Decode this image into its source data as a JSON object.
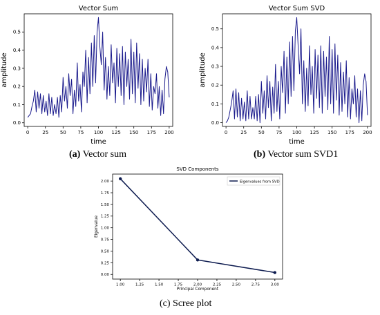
{
  "captions": {
    "a": {
      "tag": "(a)",
      "text": "Vector sum"
    },
    "b": {
      "tag": "(b)",
      "text": "Vector sum SVD1"
    },
    "c": {
      "tag": "(c)",
      "text": "Scree plot"
    }
  },
  "colors": {
    "line": "#1a1a8c",
    "scree": "#0d1b4f"
  },
  "chart_data": [
    {
      "type": "line",
      "title": "Vector Sum",
      "xlabel": "time",
      "ylabel": "amplitude",
      "xlim": [
        -5,
        205
      ],
      "ylim": [
        -0.02,
        0.6
      ],
      "xticks": [
        0,
        25,
        50,
        75,
        100,
        125,
        150,
        175,
        200
      ],
      "yticks": [
        0.0,
        0.1,
        0.2,
        0.3,
        0.4,
        0.5
      ],
      "ytick_labels": [
        "0.0",
        "0.1",
        "0.2",
        "0.3",
        "0.4",
        "0.5"
      ],
      "grid": false,
      "series": [
        {
          "x": [
            0,
            2,
            4,
            6,
            8,
            10,
            12,
            14,
            16,
            18,
            20,
            22,
            24,
            26,
            28,
            30,
            32,
            34,
            36,
            38,
            40,
            42,
            44,
            46,
            48,
            50,
            52,
            54,
            56,
            58,
            60,
            62,
            64,
            66,
            68,
            70,
            72,
            74,
            76,
            78,
            80,
            82,
            84,
            86,
            88,
            90,
            92,
            94,
            96,
            98,
            100,
            102,
            104,
            106,
            108,
            110,
            112,
            114,
            116,
            118,
            120,
            122,
            124,
            126,
            128,
            130,
            132,
            134,
            136,
            138,
            140,
            142,
            144,
            146,
            148,
            150,
            152,
            154,
            156,
            158,
            160,
            162,
            164,
            166,
            168,
            170,
            172,
            174,
            176,
            178,
            180,
            182,
            184,
            186,
            188,
            190,
            192,
            194,
            196,
            198,
            200
          ],
          "y": [
            0.03,
            0.04,
            0.05,
            0.09,
            0.12,
            0.18,
            0.06,
            0.17,
            0.08,
            0.16,
            0.05,
            0.15,
            0.06,
            0.12,
            0.04,
            0.16,
            0.05,
            0.14,
            0.04,
            0.1,
            0.05,
            0.14,
            0.03,
            0.15,
            0.06,
            0.25,
            0.12,
            0.2,
            0.08,
            0.27,
            0.15,
            0.24,
            0.05,
            0.18,
            0.09,
            0.33,
            0.12,
            0.21,
            0.06,
            0.28,
            0.2,
            0.4,
            0.11,
            0.36,
            0.16,
            0.44,
            0.2,
            0.48,
            0.22,
            0.5,
            0.58,
            0.42,
            0.32,
            0.5,
            0.18,
            0.36,
            0.13,
            0.31,
            0.15,
            0.43,
            0.22,
            0.33,
            0.11,
            0.41,
            0.2,
            0.38,
            0.15,
            0.42,
            0.1,
            0.39,
            0.2,
            0.35,
            0.13,
            0.46,
            0.16,
            0.39,
            0.11,
            0.44,
            0.19,
            0.38,
            0.1,
            0.35,
            0.12,
            0.3,
            0.17,
            0.35,
            0.09,
            0.27,
            0.07,
            0.2,
            0.16,
            0.27,
            0.08,
            0.2,
            0.04,
            0.18,
            0.05,
            0.24,
            0.31,
            0.28,
            0.14
          ]
        }
      ]
    },
    {
      "type": "line",
      "title": "Vector Sum SVD",
      "xlabel": "time",
      "ylabel": "amplitude",
      "xlim": [
        -5,
        205
      ],
      "ylim": [
        -0.02,
        0.58
      ],
      "xticks": [
        0,
        25,
        50,
        75,
        100,
        125,
        150,
        175,
        200
      ],
      "yticks": [
        0.0,
        0.1,
        0.2,
        0.3,
        0.4,
        0.5
      ],
      "ytick_labels": [
        "0.0",
        "0.1",
        "0.2",
        "0.3",
        "0.4",
        "0.5"
      ],
      "grid": false,
      "series": [
        {
          "x": [
            0,
            2,
            4,
            6,
            8,
            10,
            12,
            14,
            16,
            18,
            20,
            22,
            24,
            26,
            28,
            30,
            32,
            34,
            36,
            38,
            40,
            42,
            44,
            46,
            48,
            50,
            52,
            54,
            56,
            58,
            60,
            62,
            64,
            66,
            68,
            70,
            72,
            74,
            76,
            78,
            80,
            82,
            84,
            86,
            88,
            90,
            92,
            94,
            96,
            98,
            100,
            102,
            104,
            106,
            108,
            110,
            112,
            114,
            116,
            118,
            120,
            122,
            124,
            126,
            128,
            130,
            132,
            134,
            136,
            138,
            140,
            142,
            144,
            146,
            148,
            150,
            152,
            154,
            156,
            158,
            160,
            162,
            164,
            166,
            168,
            170,
            172,
            174,
            176,
            178,
            180,
            182,
            184,
            186,
            188,
            190,
            192,
            194,
            196,
            198,
            200
          ],
          "y": [
            0.0,
            0.01,
            0.03,
            0.07,
            0.11,
            0.17,
            0.02,
            0.18,
            0.03,
            0.16,
            0.01,
            0.13,
            0.02,
            0.11,
            0.01,
            0.17,
            0.02,
            0.14,
            0.02,
            0.08,
            0.02,
            0.14,
            0.01,
            0.15,
            0.0,
            0.22,
            0.05,
            0.17,
            0.02,
            0.25,
            0.08,
            0.22,
            0.01,
            0.19,
            0.05,
            0.31,
            0.06,
            0.22,
            0.02,
            0.3,
            0.16,
            0.38,
            0.05,
            0.35,
            0.1,
            0.43,
            0.14,
            0.46,
            0.17,
            0.49,
            0.56,
            0.41,
            0.26,
            0.5,
            0.1,
            0.33,
            0.06,
            0.29,
            0.09,
            0.41,
            0.15,
            0.3,
            0.05,
            0.39,
            0.13,
            0.36,
            0.08,
            0.41,
            0.05,
            0.38,
            0.14,
            0.35,
            0.07,
            0.46,
            0.1,
            0.39,
            0.05,
            0.42,
            0.12,
            0.36,
            0.04,
            0.32,
            0.06,
            0.27,
            0.1,
            0.33,
            0.03,
            0.24,
            0.02,
            0.18,
            0.1,
            0.25,
            0.03,
            0.18,
            0.0,
            0.17,
            0.01,
            0.2,
            0.26,
            0.22,
            0.04
          ]
        }
      ]
    },
    {
      "type": "line",
      "title": "SVD Components",
      "xlabel": "Principal Component",
      "ylabel": "Eigenvalue",
      "xlim": [
        0.9,
        3.1
      ],
      "ylim": [
        -0.1,
        2.15
      ],
      "xticks": [
        1.0,
        1.25,
        1.5,
        1.75,
        2.0,
        2.25,
        2.5,
        2.75,
        3.0
      ],
      "xtick_labels": [
        "1.00",
        "1.25",
        "1.50",
        "1.75",
        "2.00",
        "2.25",
        "2.50",
        "2.75",
        "3.00"
      ],
      "yticks": [
        0.0,
        0.25,
        0.5,
        0.75,
        1.0,
        1.25,
        1.5,
        1.75,
        2.0
      ],
      "ytick_labels": [
        "0.00",
        "0.25",
        "0.50",
        "0.75",
        "1.00",
        "1.25",
        "1.50",
        "1.75",
        "2.00"
      ],
      "legend": "top-right",
      "grid": false,
      "series": [
        {
          "name": "Eigenvalues from SVD",
          "x": [
            1,
            2,
            3
          ],
          "y": [
            2.05,
            0.31,
            0.04
          ]
        }
      ]
    }
  ]
}
